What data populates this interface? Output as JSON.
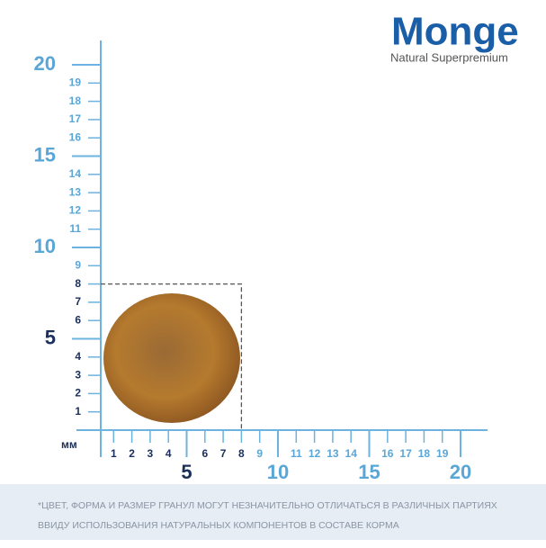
{
  "logo": {
    "brand": "Monge",
    "tagline": "Natural Superpremium"
  },
  "unit": "мм",
  "x_axis": {
    "minor_ticks": [
      1,
      2,
      3,
      4,
      6,
      7,
      8,
      9,
      11,
      12,
      13,
      14,
      16,
      17,
      18,
      19
    ],
    "major_ticks": [
      5,
      10,
      15,
      20
    ]
  },
  "y_axis": {
    "minor_ticks": [
      1,
      2,
      3,
      4,
      6,
      7,
      8,
      9,
      11,
      12,
      13,
      14,
      16,
      17,
      18,
      19
    ],
    "major_ticks": [
      5,
      10,
      15,
      20
    ]
  },
  "granule": {
    "size": 8
  },
  "disclaimer": [
    "*ЦВЕТ, ФОРМА И РАЗМЕР ГРАНУЛ МОГУТ НЕЗНАЧИТЕЛЬНО ОТЛИЧАТЬСЯ В РАЗЛИЧНЫХ ПАРТИЯХ",
    "ВВИДУ ИСПОЛЬЗОВАНИЯ НАТУРАЛЬНЫХ КОМПОНЕНТОВ В СОСТАВЕ КОРМА"
  ]
}
